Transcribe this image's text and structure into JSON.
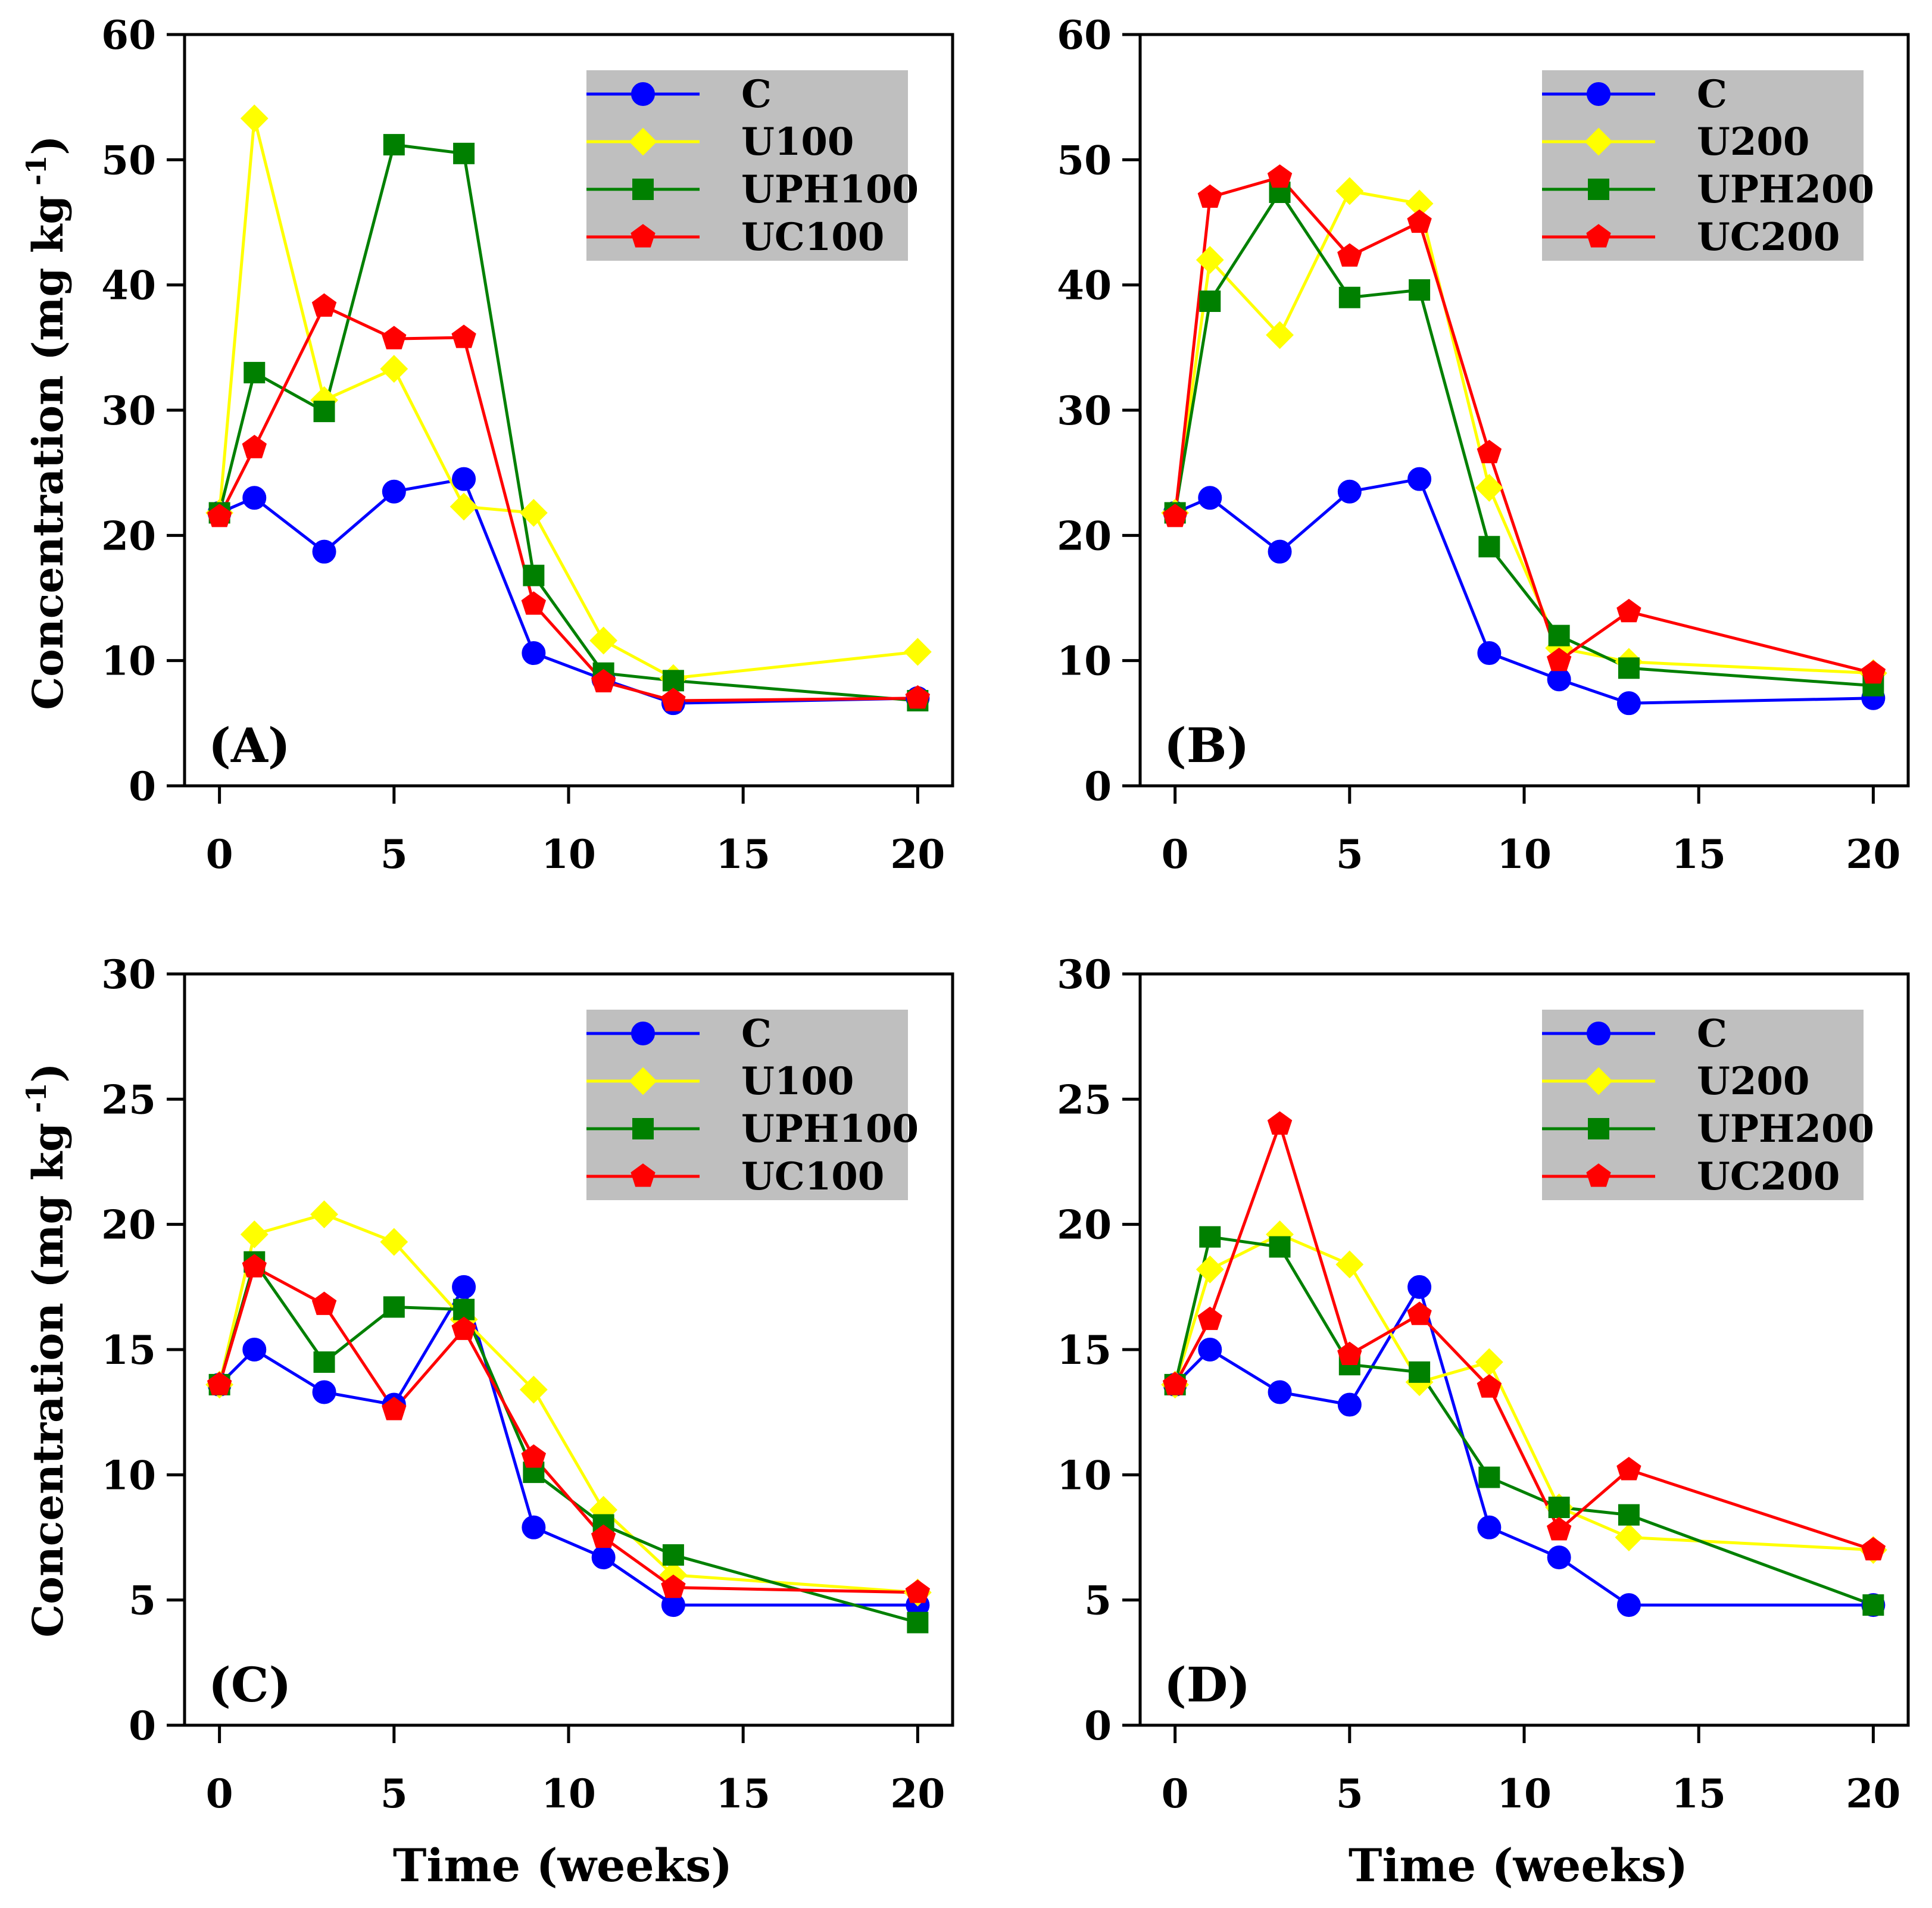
{
  "x_axis_label": "Time (weeks)",
  "y_axis_label": "Concentration (mg kg",
  "y_axis_label_sup": "-1",
  "y_axis_label_close": ")",
  "colors": {
    "C": "#0000ff",
    "U": "#ffff00",
    "UPH": "#008000",
    "UC": "#ff0000",
    "legend_bg": "#bfbfbf"
  },
  "chart_data": [
    {
      "type": "line",
      "panel_label": "(A)",
      "xlim": [
        -1,
        21
      ],
      "ylim": [
        0,
        60
      ],
      "xticks": [
        0,
        5,
        10,
        15,
        20
      ],
      "yticks": [
        0,
        10,
        20,
        30,
        40,
        50,
        60
      ],
      "x": [
        0,
        1,
        3,
        5,
        7,
        9,
        11,
        13,
        20
      ],
      "legend_position": "top-right",
      "series": [
        {
          "name": "C",
          "marker": "circle",
          "color": "#0000ff",
          "values": [
            21.8,
            23.0,
            18.7,
            23.5,
            24.5,
            10.6,
            8.5,
            6.6,
            7.0
          ]
        },
        {
          "name": "U100",
          "marker": "diamond",
          "color": "#ffff00",
          "values": [
            21.8,
            53.3,
            30.8,
            33.3,
            22.3,
            21.8,
            11.6,
            8.6,
            10.7
          ]
        },
        {
          "name": "UPH100",
          "marker": "square",
          "color": "#008000",
          "values": [
            21.8,
            33.0,
            29.9,
            51.2,
            50.5,
            16.8,
            9.0,
            8.4,
            6.8
          ]
        },
        {
          "name": "UC100",
          "marker": "pentagon",
          "color": "#ff0000",
          "values": [
            21.5,
            27.0,
            38.3,
            35.7,
            35.8,
            14.5,
            8.3,
            6.8,
            7.0
          ]
        }
      ]
    },
    {
      "type": "line",
      "panel_label": "(B)",
      "xlim": [
        -1,
        21
      ],
      "ylim": [
        0,
        60
      ],
      "xticks": [
        0,
        5,
        10,
        15,
        20
      ],
      "yticks": [
        0,
        10,
        20,
        30,
        40,
        50,
        60
      ],
      "x": [
        0,
        1,
        3,
        5,
        7,
        9,
        11,
        13,
        20
      ],
      "legend_position": "top-right",
      "series": [
        {
          "name": "C",
          "marker": "circle",
          "color": "#0000ff",
          "values": [
            21.8,
            23.0,
            18.7,
            23.5,
            24.5,
            10.6,
            8.5,
            6.6,
            7.0
          ]
        },
        {
          "name": "U200",
          "marker": "diamond",
          "color": "#ffff00",
          "values": [
            21.8,
            42.0,
            36.0,
            47.5,
            46.5,
            23.8,
            11.0,
            9.9,
            9.0
          ]
        },
        {
          "name": "UPH200",
          "marker": "square",
          "color": "#008000",
          "values": [
            21.8,
            38.7,
            47.4,
            39.0,
            39.6,
            19.1,
            12.0,
            9.4,
            8.0
          ]
        },
        {
          "name": "UC200",
          "marker": "pentagon",
          "color": "#ff0000",
          "values": [
            21.5,
            47.0,
            48.6,
            42.3,
            45.0,
            26.6,
            10.0,
            13.9,
            9.0
          ]
        }
      ]
    },
    {
      "type": "line",
      "panel_label": "(C)",
      "xlim": [
        -1,
        21
      ],
      "ylim": [
        0,
        30
      ],
      "xticks": [
        0,
        5,
        10,
        15,
        20
      ],
      "yticks": [
        0,
        5,
        10,
        15,
        20,
        25,
        30
      ],
      "x": [
        0,
        1,
        3,
        5,
        7,
        9,
        11,
        13,
        20
      ],
      "legend_position": "top-right",
      "series": [
        {
          "name": "C",
          "marker": "circle",
          "color": "#0000ff",
          "values": [
            13.6,
            15.0,
            13.3,
            12.8,
            17.5,
            7.9,
            6.7,
            4.8,
            4.8
          ]
        },
        {
          "name": "U100",
          "marker": "diamond",
          "color": "#ffff00",
          "values": [
            13.6,
            19.6,
            20.4,
            19.3,
            16.2,
            13.4,
            8.6,
            6.0,
            5.3
          ]
        },
        {
          "name": "UPH100",
          "marker": "square",
          "color": "#008000",
          "values": [
            13.6,
            18.5,
            14.5,
            16.7,
            16.6,
            10.1,
            8.0,
            6.8,
            4.1
          ]
        },
        {
          "name": "UC100",
          "marker": "pentagon",
          "color": "#ff0000",
          "values": [
            13.6,
            18.3,
            16.8,
            12.6,
            15.8,
            10.7,
            7.5,
            5.5,
            5.3
          ]
        }
      ]
    },
    {
      "type": "line",
      "panel_label": "(D)",
      "xlim": [
        -1,
        21
      ],
      "ylim": [
        0,
        30
      ],
      "xticks": [
        0,
        5,
        10,
        15,
        20
      ],
      "yticks": [
        0,
        5,
        10,
        15,
        20,
        25,
        30
      ],
      "x": [
        0,
        1,
        3,
        5,
        7,
        9,
        11,
        13,
        20
      ],
      "legend_position": "top-right",
      "series": [
        {
          "name": "C",
          "marker": "circle",
          "color": "#0000ff",
          "values": [
            13.6,
            15.0,
            13.3,
            12.8,
            17.5,
            7.9,
            6.7,
            4.8,
            4.8
          ]
        },
        {
          "name": "U200",
          "marker": "diamond",
          "color": "#ffff00",
          "values": [
            13.6,
            18.2,
            19.6,
            18.4,
            13.7,
            14.5,
            8.7,
            7.5,
            7.0
          ]
        },
        {
          "name": "UPH200",
          "marker": "square",
          "color": "#008000",
          "values": [
            13.6,
            19.5,
            19.1,
            14.4,
            14.1,
            9.9,
            8.7,
            8.4,
            4.8
          ]
        },
        {
          "name": "UC200",
          "marker": "pentagon",
          "color": "#ff0000",
          "values": [
            13.6,
            16.2,
            24.0,
            14.8,
            16.4,
            13.5,
            7.8,
            10.2,
            7.0
          ]
        }
      ]
    }
  ]
}
